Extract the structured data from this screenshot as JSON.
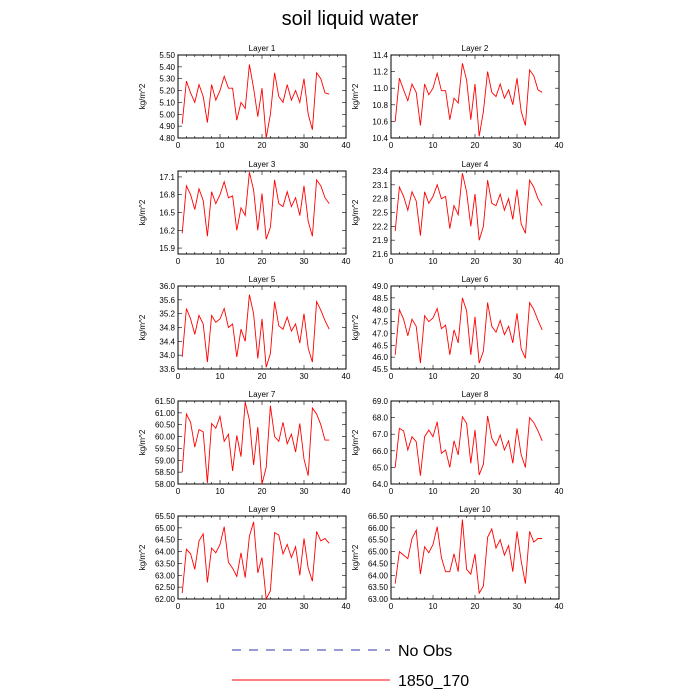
{
  "title": "soil liquid water",
  "legend": [
    {
      "label": "No Obs",
      "color": "#3333aa",
      "style": "dashed"
    },
    {
      "label": "1850_170",
      "color": "#ff0000",
      "style": "solid"
    }
  ],
  "chart_data": [
    {
      "type": "line",
      "title": "Layer 1",
      "xlabel": "",
      "ylabel": "kg/m^2",
      "xlim": [
        0,
        40
      ],
      "ylim": [
        4.8,
        5.5
      ],
      "xticks": [
        0,
        10,
        20,
        30,
        40
      ],
      "yticks": [
        "4.80",
        "4.90",
        "5.00",
        "5.10",
        "5.20",
        "5.30",
        "5.40",
        "5.50"
      ],
      "series": [
        {
          "name": "1850_170",
          "color": "#ff0000",
          "x": [
            1,
            2,
            3,
            4,
            5,
            6,
            7,
            8,
            9,
            10,
            11,
            12,
            13,
            14,
            15,
            16,
            17,
            18,
            19,
            20,
            21,
            22,
            23,
            24,
            25,
            26,
            27,
            28,
            29,
            30,
            31,
            32,
            33,
            34,
            35,
            36
          ],
          "values": [
            4.92,
            5.28,
            5.18,
            5.1,
            5.25,
            5.15,
            4.93,
            5.25,
            5.12,
            5.2,
            5.32,
            5.22,
            5.22,
            4.95,
            5.1,
            5.05,
            5.42,
            5.22,
            4.98,
            5.22,
            4.8,
            5.0,
            5.35,
            5.15,
            5.1,
            5.25,
            5.12,
            5.2,
            5.1,
            5.3,
            5.0,
            4.87,
            5.35,
            5.3,
            5.18,
            5.17
          ]
        }
      ]
    },
    {
      "type": "line",
      "title": "Layer 2",
      "xlabel": "",
      "ylabel": "kg/m^2",
      "xlim": [
        0,
        40
      ],
      "ylim": [
        10.4,
        11.4
      ],
      "xticks": [
        0,
        10,
        20,
        30,
        40
      ],
      "yticks": [
        "10.4",
        "10.6",
        "10.8",
        "11.0",
        "11.2",
        "11.4"
      ],
      "series": [
        {
          "name": "1850_170",
          "color": "#ff0000",
          "x": [
            1,
            2,
            3,
            4,
            5,
            6,
            7,
            8,
            9,
            10,
            11,
            12,
            13,
            14,
            15,
            16,
            17,
            18,
            19,
            20,
            21,
            22,
            23,
            24,
            25,
            26,
            27,
            28,
            29,
            30,
            31,
            32,
            33,
            34,
            35,
            36
          ],
          "values": [
            10.6,
            11.12,
            10.98,
            10.85,
            11.05,
            10.95,
            10.55,
            11.05,
            10.92,
            11.0,
            11.18,
            10.97,
            10.97,
            10.62,
            10.88,
            10.82,
            11.3,
            11.1,
            10.62,
            11.05,
            10.42,
            10.72,
            11.2,
            10.95,
            10.9,
            11.05,
            10.88,
            10.98,
            10.8,
            11.12,
            10.72,
            10.55,
            11.22,
            11.15,
            10.98,
            10.95
          ]
        }
      ]
    },
    {
      "type": "line",
      "title": "Layer 3",
      "xlabel": "",
      "ylabel": "kg/m^2",
      "xlim": [
        0,
        40
      ],
      "ylim": [
        15.8,
        17.2
      ],
      "xticks": [
        0,
        10,
        20,
        30,
        40
      ],
      "yticks": [
        "15.9",
        "16.2",
        "16.5",
        "16.8",
        "17.1"
      ],
      "series": [
        {
          "name": "1850_170",
          "color": "#ff0000",
          "x": [
            1,
            2,
            3,
            4,
            5,
            6,
            7,
            8,
            9,
            10,
            11,
            12,
            13,
            14,
            15,
            16,
            17,
            18,
            19,
            20,
            21,
            22,
            23,
            24,
            25,
            26,
            27,
            28,
            29,
            30,
            31,
            32,
            33,
            34,
            35,
            36
          ],
          "values": [
            16.15,
            16.95,
            16.8,
            16.55,
            16.9,
            16.7,
            16.1,
            16.85,
            16.65,
            16.8,
            17.02,
            16.75,
            16.78,
            16.2,
            16.58,
            16.45,
            17.18,
            16.88,
            16.2,
            16.82,
            16.05,
            16.25,
            17.05,
            16.65,
            16.6,
            16.85,
            16.6,
            16.75,
            16.45,
            16.95,
            16.35,
            16.1,
            17.05,
            16.95,
            16.75,
            16.65
          ]
        }
      ]
    },
    {
      "type": "line",
      "title": "Layer 4",
      "xlabel": "",
      "ylabel": "kg/m^2",
      "xlim": [
        0,
        40
      ],
      "ylim": [
        21.6,
        23.4
      ],
      "xticks": [
        0,
        10,
        20,
        30,
        40
      ],
      "yticks": [
        "21.6",
        "21.9",
        "22.2",
        "22.5",
        "22.8",
        "23.1",
        "23.4"
      ],
      "series": [
        {
          "name": "1850_170",
          "color": "#ff0000",
          "x": [
            1,
            2,
            3,
            4,
            5,
            6,
            7,
            8,
            9,
            10,
            11,
            12,
            13,
            14,
            15,
            16,
            17,
            18,
            19,
            20,
            21,
            22,
            23,
            24,
            25,
            26,
            27,
            28,
            29,
            30,
            31,
            32,
            33,
            34,
            35,
            36
          ],
          "values": [
            22.1,
            23.05,
            22.85,
            22.55,
            22.95,
            22.75,
            22.0,
            22.95,
            22.7,
            22.85,
            23.1,
            22.8,
            22.85,
            22.15,
            22.65,
            22.45,
            23.35,
            22.95,
            22.2,
            22.9,
            21.9,
            22.2,
            23.2,
            22.7,
            22.65,
            22.9,
            22.55,
            22.8,
            22.35,
            23.0,
            22.25,
            22.05,
            23.2,
            23.05,
            22.8,
            22.65
          ]
        }
      ]
    },
    {
      "type": "line",
      "title": "Layer 5",
      "xlabel": "",
      "ylabel": "kg/m^2",
      "xlim": [
        0,
        40
      ],
      "ylim": [
        33.6,
        36.0
      ],
      "xticks": [
        0,
        10,
        20,
        30,
        40
      ],
      "yticks": [
        "33.6",
        "34.0",
        "34.4",
        "34.8",
        "35.2",
        "35.6",
        "36.0"
      ],
      "series": [
        {
          "name": "1850_170",
          "color": "#ff0000",
          "x": [
            1,
            2,
            3,
            4,
            5,
            6,
            7,
            8,
            9,
            10,
            11,
            12,
            13,
            14,
            15,
            16,
            17,
            18,
            19,
            20,
            21,
            22,
            23,
            24,
            25,
            26,
            27,
            28,
            29,
            30,
            31,
            32,
            33,
            34,
            35,
            36
          ],
          "values": [
            33.95,
            35.35,
            35.05,
            34.6,
            35.15,
            34.9,
            33.8,
            35.15,
            34.95,
            35.05,
            35.35,
            34.8,
            34.9,
            33.95,
            34.75,
            34.4,
            35.75,
            35.2,
            33.9,
            35.05,
            33.65,
            34.05,
            35.55,
            34.85,
            34.75,
            35.1,
            34.7,
            34.9,
            34.35,
            35.2,
            34.2,
            33.8,
            35.55,
            35.3,
            35.0,
            34.75
          ]
        }
      ]
    },
    {
      "type": "line",
      "title": "Layer 6",
      "xlabel": "",
      "ylabel": "kg/m^2",
      "xlim": [
        0,
        40
      ],
      "ylim": [
        45.5,
        49.0
      ],
      "xticks": [
        0,
        10,
        20,
        30,
        40
      ],
      "yticks": [
        "45.5",
        "46.0",
        "46.5",
        "47.0",
        "47.5",
        "48.0",
        "48.5",
        "49.0"
      ],
      "series": [
        {
          "name": "1850_170",
          "color": "#ff0000",
          "x": [
            1,
            2,
            3,
            4,
            5,
            6,
            7,
            8,
            9,
            10,
            11,
            12,
            13,
            14,
            15,
            16,
            17,
            18,
            19,
            20,
            21,
            22,
            23,
            24,
            25,
            26,
            27,
            28,
            29,
            30,
            31,
            32,
            33,
            34,
            35,
            36
          ],
          "values": [
            46.1,
            48.0,
            47.6,
            46.9,
            47.6,
            47.3,
            45.75,
            47.75,
            47.5,
            47.65,
            48.05,
            47.2,
            47.35,
            46.1,
            47.15,
            46.6,
            48.5,
            47.95,
            46.1,
            47.7,
            45.75,
            46.25,
            48.3,
            47.3,
            47.05,
            47.55,
            46.95,
            47.3,
            46.6,
            47.85,
            46.35,
            45.95,
            48.3,
            48.0,
            47.55,
            47.15
          ]
        }
      ]
    },
    {
      "type": "line",
      "title": "Layer 7",
      "xlabel": "",
      "ylabel": "kg/m^2",
      "xlim": [
        0,
        40
      ],
      "ylim": [
        58.0,
        61.5
      ],
      "xticks": [
        0,
        10,
        20,
        30,
        40
      ],
      "yticks": [
        "58.00",
        "58.50",
        "59.00",
        "59.50",
        "60.00",
        "60.50",
        "61.00",
        "61.50"
      ],
      "series": [
        {
          "name": "1850_170",
          "color": "#ff0000",
          "x": [
            1,
            2,
            3,
            4,
            5,
            6,
            7,
            8,
            9,
            10,
            11,
            12,
            13,
            14,
            15,
            16,
            17,
            18,
            19,
            20,
            21,
            22,
            23,
            24,
            25,
            26,
            27,
            28,
            29,
            30,
            31,
            32,
            33,
            34,
            35,
            36
          ],
          "values": [
            58.5,
            60.95,
            60.6,
            59.55,
            60.3,
            60.2,
            58.05,
            60.55,
            60.35,
            60.85,
            59.8,
            60.1,
            58.55,
            60.05,
            59.15,
            61.45,
            60.7,
            58.8,
            60.4,
            58.0,
            58.7,
            61.3,
            60.0,
            59.8,
            60.6,
            59.7,
            60.1,
            59.35,
            60.55,
            59.05,
            58.35,
            61.2,
            60.95,
            60.5,
            59.85,
            59.85
          ]
        }
      ]
    },
    {
      "type": "line",
      "title": "Layer 8",
      "xlabel": "",
      "ylabel": "kg/m^2",
      "xlim": [
        0,
        40
      ],
      "ylim": [
        64.0,
        69.0
      ],
      "xticks": [
        0,
        10,
        20,
        30,
        40
      ],
      "yticks": [
        "64.0",
        "65.0",
        "66.0",
        "67.0",
        "68.0",
        "69.0"
      ],
      "series": [
        {
          "name": "1850_170",
          "color": "#ff0000",
          "x": [
            1,
            2,
            3,
            4,
            5,
            6,
            7,
            8,
            9,
            10,
            11,
            12,
            13,
            14,
            15,
            16,
            17,
            18,
            19,
            20,
            21,
            22,
            23,
            24,
            25,
            26,
            27,
            28,
            29,
            30,
            31,
            32,
            33,
            34,
            35,
            36
          ],
          "values": [
            65.0,
            67.35,
            67.2,
            66.05,
            66.85,
            66.55,
            64.5,
            66.85,
            67.25,
            66.85,
            67.75,
            65.85,
            66.05,
            65.0,
            66.6,
            65.75,
            68.05,
            67.65,
            65.25,
            67.25,
            64.55,
            65.2,
            68.1,
            66.75,
            66.3,
            66.95,
            66.05,
            66.6,
            65.25,
            67.35,
            65.75,
            65.0,
            68.0,
            67.7,
            67.2,
            66.6
          ]
        }
      ]
    },
    {
      "type": "line",
      "title": "Layer 9",
      "xlabel": "",
      "ylabel": "kg/m^2",
      "xlim": [
        0,
        40
      ],
      "ylim": [
        62.0,
        65.5
      ],
      "xticks": [
        0,
        10,
        20,
        30,
        40
      ],
      "yticks": [
        "62.00",
        "62.50",
        "63.00",
        "63.50",
        "64.00",
        "64.50",
        "65.00",
        "65.50"
      ],
      "series": [
        {
          "name": "1850_170",
          "color": "#ff0000",
          "x": [
            1,
            2,
            3,
            4,
            5,
            6,
            7,
            8,
            9,
            10,
            11,
            12,
            13,
            14,
            15,
            16,
            17,
            18,
            19,
            20,
            21,
            22,
            23,
            24,
            25,
            26,
            27,
            28,
            29,
            30,
            31,
            32,
            33,
            34,
            35,
            36
          ],
          "values": [
            62.25,
            64.1,
            63.9,
            63.25,
            64.45,
            64.75,
            62.7,
            64.15,
            63.95,
            64.3,
            65.05,
            63.55,
            63.3,
            62.95,
            63.95,
            62.9,
            64.65,
            65.25,
            63.1,
            63.75,
            62.0,
            62.35,
            64.8,
            64.7,
            63.9,
            64.3,
            63.75,
            64.2,
            63.0,
            64.55,
            63.3,
            62.75,
            64.85,
            64.45,
            64.55,
            64.35
          ]
        }
      ]
    },
    {
      "type": "line",
      "title": "Layer 10",
      "xlabel": "",
      "ylabel": "kg/m^2",
      "xlim": [
        0,
        40
      ],
      "ylim": [
        63.0,
        66.5
      ],
      "xticks": [
        0,
        10,
        20,
        30,
        40
      ],
      "yticks": [
        "63.00",
        "63.50",
        "64.00",
        "64.50",
        "65.00",
        "65.50",
        "66.00",
        "66.50"
      ],
      "series": [
        {
          "name": "1850_170",
          "color": "#ff0000",
          "x": [
            1,
            2,
            3,
            4,
            5,
            6,
            7,
            8,
            9,
            10,
            11,
            12,
            13,
            14,
            15,
            16,
            17,
            18,
            19,
            20,
            21,
            22,
            23,
            24,
            25,
            26,
            27,
            28,
            29,
            30,
            31,
            32,
            33,
            34,
            35,
            36
          ],
          "values": [
            63.65,
            65.0,
            64.85,
            64.7,
            65.55,
            65.9,
            64.05,
            65.2,
            64.95,
            65.3,
            66.05,
            64.75,
            64.15,
            64.15,
            64.9,
            64.15,
            66.35,
            64.25,
            64.05,
            64.9,
            63.25,
            63.55,
            65.6,
            65.95,
            65.15,
            65.5,
            64.85,
            65.25,
            64.15,
            65.85,
            64.6,
            63.65,
            65.85,
            65.4,
            65.55,
            65.55
          ]
        }
      ]
    }
  ]
}
